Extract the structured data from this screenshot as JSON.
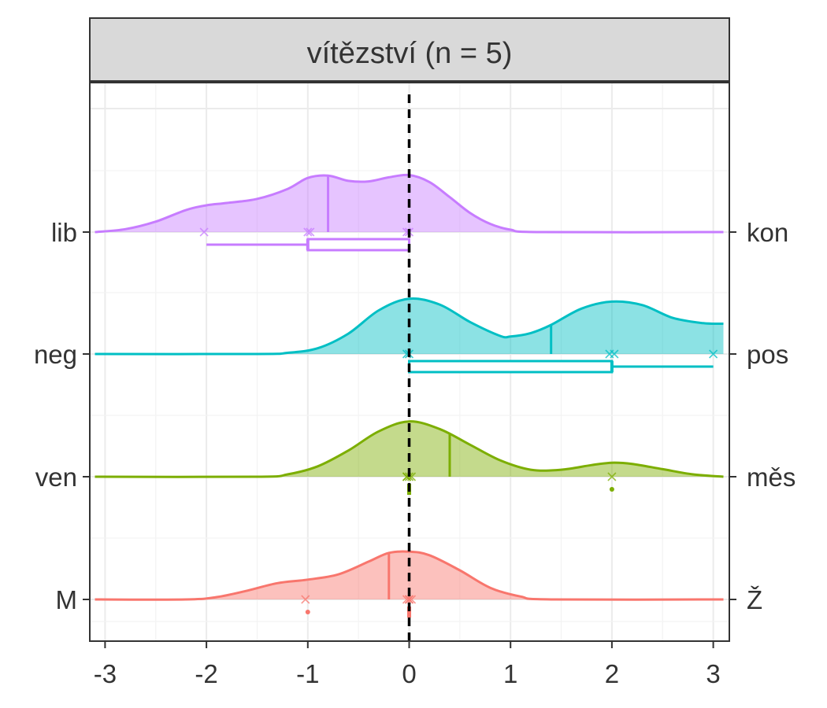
{
  "chart_data": {
    "type": "ridgeline",
    "title": "vítězství (n = 5)",
    "xlabel": "",
    "ylabel": "",
    "xlim": [
      -3.1,
      3.1
    ],
    "x_ticks": [
      "-3",
      "-2",
      "-1",
      "0",
      "1",
      "2",
      "3"
    ],
    "x_tick_values": [
      -3,
      -2,
      -1,
      0,
      1,
      2,
      3
    ],
    "grid": true,
    "reference_line": {
      "x": 0,
      "style": "dashed"
    },
    "rows": [
      {
        "left_label": "lib",
        "right_label": "kon",
        "color": "#C77CFF",
        "mean": -0.8,
        "points": [
          -2,
          -1,
          -1,
          0,
          0
        ],
        "density": [
          [
            -3.1,
            0.0
          ],
          [
            -2.8,
            0.05
          ],
          [
            -2.5,
            0.18
          ],
          [
            -2.2,
            0.38
          ],
          [
            -2.0,
            0.46
          ],
          [
            -1.8,
            0.5
          ],
          [
            -1.5,
            0.57
          ],
          [
            -1.2,
            0.74
          ],
          [
            -1.0,
            0.93
          ],
          [
            -0.8,
            0.97
          ],
          [
            -0.6,
            0.88
          ],
          [
            -0.4,
            0.87
          ],
          [
            -0.2,
            0.94
          ],
          [
            0.0,
            0.98
          ],
          [
            0.2,
            0.86
          ],
          [
            0.4,
            0.6
          ],
          [
            0.6,
            0.33
          ],
          [
            0.8,
            0.14
          ],
          [
            1.0,
            0.04
          ],
          [
            1.3,
            0.0
          ],
          [
            3.1,
            0.0
          ]
        ],
        "box": {
          "min": -2,
          "q1": -1,
          "median": -1,
          "q3": 0,
          "max": 0
        }
      },
      {
        "left_label": "neg",
        "right_label": "pos",
        "color": "#00BFC4",
        "mean": 1.4,
        "points": [
          0,
          0,
          2,
          2,
          3
        ],
        "density": [
          [
            -3.1,
            0.0
          ],
          [
            -1.5,
            0.0
          ],
          [
            -1.2,
            0.02
          ],
          [
            -0.9,
            0.1
          ],
          [
            -0.6,
            0.35
          ],
          [
            -0.3,
            0.75
          ],
          [
            0.0,
            0.95
          ],
          [
            0.3,
            0.85
          ],
          [
            0.6,
            0.55
          ],
          [
            0.9,
            0.31
          ],
          [
            1.0,
            0.3
          ],
          [
            1.2,
            0.36
          ],
          [
            1.4,
            0.5
          ],
          [
            1.7,
            0.78
          ],
          [
            2.0,
            0.9
          ],
          [
            2.3,
            0.84
          ],
          [
            2.6,
            0.62
          ],
          [
            2.9,
            0.53
          ],
          [
            3.1,
            0.52
          ]
        ],
        "box": {
          "min": 0,
          "q1": 0,
          "median": 2,
          "q3": 2,
          "max": 3
        }
      },
      {
        "left_label": "ven",
        "right_label": "měs",
        "color": "#7CAE00",
        "mean": 0.4,
        "points": [
          0,
          0,
          0,
          0,
          2
        ],
        "density": [
          [
            -3.1,
            0.0
          ],
          [
            -1.5,
            0.0
          ],
          [
            -1.2,
            0.04
          ],
          [
            -0.9,
            0.18
          ],
          [
            -0.6,
            0.45
          ],
          [
            -0.3,
            0.78
          ],
          [
            0.0,
            0.95
          ],
          [
            0.3,
            0.82
          ],
          [
            0.6,
            0.55
          ],
          [
            0.9,
            0.28
          ],
          [
            1.2,
            0.12
          ],
          [
            1.5,
            0.12
          ],
          [
            1.8,
            0.2
          ],
          [
            2.0,
            0.24
          ],
          [
            2.2,
            0.22
          ],
          [
            2.5,
            0.13
          ],
          [
            2.8,
            0.04
          ],
          [
            3.1,
            0.0
          ]
        ],
        "box": {
          "min": 0,
          "q1": 0,
          "median": 0,
          "q3": 0,
          "max": 0,
          "outliers": [
            2
          ]
        }
      },
      {
        "left_label": "M",
        "right_label": "Ž",
        "color": "#F8766D",
        "mean": -0.2,
        "points": [
          -1,
          0,
          0,
          0,
          0
        ],
        "density": [
          [
            -3.1,
            0.0
          ],
          [
            -2.2,
            0.0
          ],
          [
            -1.9,
            0.04
          ],
          [
            -1.6,
            0.15
          ],
          [
            -1.3,
            0.28
          ],
          [
            -1.0,
            0.34
          ],
          [
            -0.7,
            0.43
          ],
          [
            -0.4,
            0.65
          ],
          [
            -0.2,
            0.8
          ],
          [
            0.0,
            0.82
          ],
          [
            0.2,
            0.76
          ],
          [
            0.5,
            0.5
          ],
          [
            0.8,
            0.2
          ],
          [
            1.1,
            0.05
          ],
          [
            1.4,
            0.0
          ],
          [
            3.1,
            0.0
          ]
        ],
        "box": {
          "min": 0,
          "q1": 0,
          "median": 0,
          "q3": 0,
          "max": 0,
          "outliers": [
            -1
          ]
        }
      }
    ]
  }
}
